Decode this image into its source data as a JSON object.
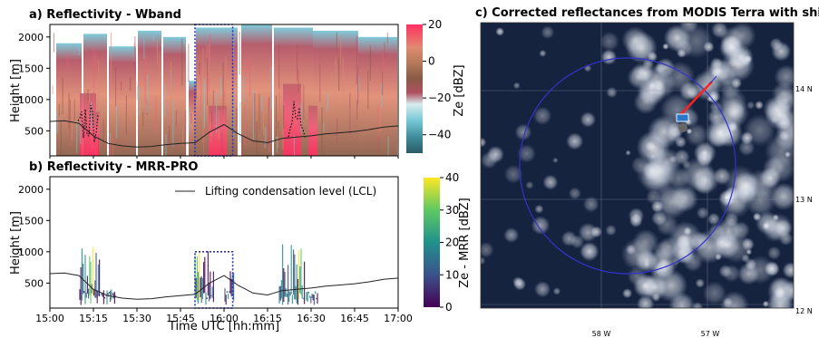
{
  "panel_a": {
    "title": "a) Reflectivity - Wband",
    "ylabel": "Height [m]",
    "cbar_label": "Ze [dBZ]"
  },
  "panel_b": {
    "title": "b) Reflectivity - MRR-PRO",
    "ylabel": "Height [m]",
    "xlabel": "Time UTC [hh:mm]",
    "cbar_label": "Ze - MRR [dBZ]",
    "legend": "Lifting condensation level (LCL)"
  },
  "panel_c": {
    "title": "c) Corrected reflectances from MODIS Terra with ship track"
  },
  "chart_data": [
    {
      "type": "heatmap",
      "title": "a) Reflectivity - Wband",
      "ylabel": "Height [m]",
      "ylim": [
        100,
        2200
      ],
      "yticks": [
        500,
        1000,
        1500,
        2000
      ],
      "xlim": [
        "15:00",
        "17:00"
      ],
      "xticks": [
        "15:00",
        "15:15",
        "15:30",
        "15:45",
        "16:00",
        "16:15",
        "16:30",
        "16:45",
        "17:00"
      ],
      "colorbar": {
        "label": "Ze [dBZ]",
        "range": [
          -50,
          20
        ],
        "ticks": [
          20,
          0,
          -20,
          -40
        ]
      },
      "highlight_box": {
        "x": [
          "15:50",
          "16:03"
        ],
        "y": [
          100,
          2200
        ]
      },
      "series": [
        {
          "name": "Lifting condensation level (LCL)",
          "x": [
            "15:00",
            "15:05",
            "15:10",
            "15:15",
            "15:20",
            "15:25",
            "15:30",
            "15:35",
            "15:40",
            "15:45",
            "15:50",
            "15:55",
            "16:00",
            "16:05",
            "16:10",
            "16:15",
            "16:20",
            "16:25",
            "16:30",
            "16:35",
            "16:40",
            "16:45",
            "16:50",
            "16:55",
            "17:00"
          ],
          "values": [
            650,
            660,
            620,
            420,
            300,
            260,
            240,
            250,
            280,
            300,
            310,
            480,
            600,
            450,
            340,
            310,
            380,
            400,
            420,
            450,
            470,
            490,
            520,
            560,
            580
          ]
        }
      ]
    },
    {
      "type": "heatmap",
      "title": "b) Reflectivity - MRR-PRO",
      "ylabel": "Height [m]",
      "xlabel": "Time UTC [hh:mm]",
      "ylim": [
        100,
        2200
      ],
      "yticks": [
        500,
        1000,
        1500,
        2000
      ],
      "xticks": [
        "15:00",
        "15:15",
        "15:30",
        "15:45",
        "16:00",
        "16:15",
        "16:30",
        "16:45",
        "17:00"
      ],
      "colorbar": {
        "label": "Ze - MRR [dBZ]",
        "range": [
          0,
          40
        ],
        "ticks": [
          40,
          30,
          20,
          10,
          0
        ]
      },
      "legend": "Lifting condensation level (LCL)",
      "highlight_box": {
        "x": [
          "15:50",
          "16:03"
        ],
        "y": [
          100,
          1000
        ]
      },
      "series": [
        {
          "name": "Lifting condensation level (LCL)",
          "x": [
            "15:00",
            "15:05",
            "15:10",
            "15:15",
            "15:20",
            "15:25",
            "15:30",
            "15:35",
            "15:40",
            "15:45",
            "15:50",
            "15:55",
            "16:00",
            "16:05",
            "16:10",
            "16:15",
            "16:20",
            "16:25",
            "16:30",
            "16:35",
            "16:40",
            "16:45",
            "16:50",
            "16:55",
            "17:00"
          ],
          "values": [
            650,
            660,
            620,
            400,
            300,
            260,
            240,
            250,
            280,
            300,
            320,
            500,
            620,
            460,
            340,
            310,
            380,
            400,
            420,
            450,
            470,
            490,
            520,
            560,
            580
          ]
        }
      ]
    },
    {
      "type": "map",
      "title": "c) Corrected reflectances from MODIS Terra with ship track",
      "lat_labels": [
        "14 N",
        "13 N",
        "12 N"
      ],
      "lon_labels": [
        "58 W",
        "57 W"
      ]
    }
  ],
  "colors": {
    "highlight": "#2233cc",
    "lcl": "#222222",
    "circle": "#3333cc",
    "track": "#ff2020"
  }
}
